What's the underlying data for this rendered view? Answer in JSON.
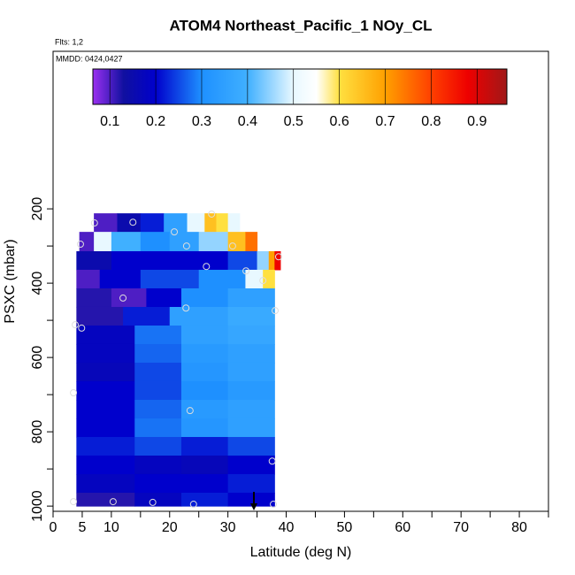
{
  "chart_data": {
    "type": "curtain",
    "title": "ATOM4 Northeast_Pacific_1 NOy_CL",
    "subtitle": "Flts: 1,2",
    "annotation": "MMDD: 0424,0427",
    "x_label": "Latitude (deg N)",
    "y_label": "PSXC (mbar)",
    "xlim": [
      0,
      85
    ],
    "xticks": [
      0,
      5,
      10,
      20,
      30,
      40,
      50,
      60,
      70,
      80
    ],
    "xminor_ticks": [
      15,
      25,
      35,
      45,
      55,
      65,
      75,
      85
    ],
    "ylim": [
      1014,
      -224
    ],
    "yticks": [
      200,
      400,
      600,
      800,
      1000
    ],
    "yminor_ticks": [
      300,
      500,
      700,
      900
    ],
    "colorbar_lim": [
      0.063,
      0.965
    ],
    "colorbar_ticks": [
      0.1,
      0.2,
      0.3,
      0.4,
      0.5,
      0.6,
      0.7,
      0.8,
      0.9
    ],
    "colorscale": [
      [
        0.063,
        "#9a30f0"
      ],
      [
        0.13,
        "#1010a0"
      ],
      [
        0.2,
        "#0000cc"
      ],
      [
        0.3,
        "#1e90ff"
      ],
      [
        0.4,
        "#40b0ff"
      ],
      [
        0.5,
        "#e8f8ff"
      ],
      [
        0.55,
        "#ffffff"
      ],
      [
        0.6,
        "#ffe040"
      ],
      [
        0.7,
        "#ffa000"
      ],
      [
        0.8,
        "#ff4000"
      ],
      [
        0.88,
        "#ee0000"
      ],
      [
        0.965,
        "#a01818"
      ]
    ],
    "rows": [
      {
        "p": [
          212,
          262
        ],
        "lat": [
          7,
          11,
          15,
          19,
          23,
          26,
          28,
          30,
          32
        ],
        "values": [
          0.1,
          0.15,
          0.22,
          0.35,
          0.5,
          0.65,
          0.6,
          0.5
        ]
      },
      {
        "p": [
          262,
          314
        ],
        "lat": [
          4.5,
          7,
          10,
          15,
          20,
          25,
          30,
          33,
          35
        ],
        "values": [
          0.1,
          0.5,
          0.4,
          0.3,
          0.35,
          0.45,
          0.65,
          0.75
        ]
      },
      {
        "p": [
          314,
          364
        ],
        "lat": [
          4,
          10,
          20,
          30,
          35,
          37,
          38,
          39
        ],
        "values": [
          0.15,
          0.2,
          0.2,
          0.25,
          0.45,
          0.7,
          0.88
        ]
      },
      {
        "p": [
          364,
          414
        ],
        "lat": [
          4,
          8,
          15,
          25,
          33,
          36,
          38
        ],
        "values": [
          0.1,
          0.2,
          0.25,
          0.3,
          0.5,
          0.6
        ]
      },
      {
        "p": [
          414,
          464
        ],
        "lat": [
          4,
          10,
          16,
          22,
          30,
          38
        ],
        "values": [
          0.12,
          0.1,
          0.2,
          0.3,
          0.35
        ]
      },
      {
        "p": [
          464,
          514
        ],
        "lat": [
          4,
          12,
          20,
          30,
          38
        ],
        "values": [
          0.12,
          0.22,
          0.35,
          0.38
        ]
      },
      {
        "p": [
          514,
          564
        ],
        "lat": [
          4,
          14,
          22,
          30,
          38
        ],
        "values": [
          0.18,
          0.28,
          0.35,
          0.37
        ]
      },
      {
        "p": [
          564,
          614
        ],
        "lat": [
          4,
          14,
          22,
          30,
          38
        ],
        "values": [
          0.18,
          0.27,
          0.33,
          0.35
        ]
      },
      {
        "p": [
          614,
          664
        ],
        "lat": [
          4,
          14,
          22,
          30,
          38
        ],
        "values": [
          0.17,
          0.25,
          0.32,
          0.35
        ]
      },
      {
        "p": [
          664,
          714
        ],
        "lat": [
          4,
          14,
          22,
          30,
          38
        ],
        "values": [
          0.2,
          0.25,
          0.3,
          0.33
        ]
      },
      {
        "p": [
          714,
          764
        ],
        "lat": [
          4,
          14,
          22,
          30,
          38
        ],
        "values": [
          0.2,
          0.27,
          0.33,
          0.35
        ]
      },
      {
        "p": [
          764,
          814
        ],
        "lat": [
          4,
          14,
          22,
          30,
          38
        ],
        "values": [
          0.2,
          0.28,
          0.32,
          0.35
        ]
      },
      {
        "p": [
          814,
          864
        ],
        "lat": [
          4,
          14,
          22,
          30,
          38
        ],
        "values": [
          0.22,
          0.25,
          0.22,
          0.25
        ]
      },
      {
        "p": [
          864,
          914
        ],
        "lat": [
          4,
          14,
          22,
          30,
          38
        ],
        "values": [
          0.2,
          0.18,
          0.17,
          0.2
        ]
      },
      {
        "p": [
          914,
          964
        ],
        "lat": [
          4,
          14,
          22,
          30,
          38
        ],
        "values": [
          0.18,
          0.2,
          0.2,
          0.22
        ]
      },
      {
        "p": [
          964,
          1000
        ],
        "lat": [
          4,
          14,
          22,
          30,
          38
        ],
        "values": [
          0.12,
          0.18,
          0.22,
          0.2
        ]
      }
    ],
    "points": {
      "lat": [
        7.1,
        13.7,
        20.8,
        22.9,
        27.2,
        30.8,
        4.7,
        26.3,
        33.1,
        36.0,
        38.7,
        12.0,
        22.8,
        38.1,
        3.8,
        4.9,
        23.5,
        3.5,
        37.6,
        3.5,
        10.3,
        17.1,
        24.1,
        37.8
      ],
      "p": [
        238,
        236,
        262,
        300,
        214,
        300,
        295,
        355,
        367,
        393,
        329,
        440,
        467,
        474,
        512,
        521,
        743,
        695,
        879,
        988,
        988,
        990,
        995,
        995
      ]
    }
  }
}
